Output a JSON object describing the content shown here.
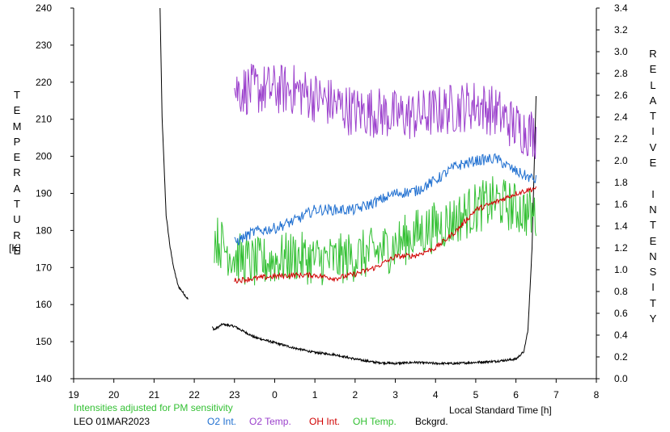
{
  "chart_data": {
    "type": "line",
    "left_axis_title": "TEMPERATURE",
    "left_axis_unit": "[K]",
    "right_axis_title": "RELATIVE INTENSITY",
    "xlabel": "Local Standard Time [h]",
    "x_tick_labels": [
      "19",
      "20",
      "21",
      "22",
      "23",
      "0",
      "1",
      "2",
      "3",
      "4",
      "5",
      "6",
      "7",
      "8"
    ],
    "x_ticks_hours": [
      19,
      20,
      21,
      22,
      23,
      24,
      25,
      26,
      27,
      28,
      29,
      30,
      31,
      32
    ],
    "xlim": [
      19,
      32
    ],
    "left_ylim": [
      140,
      240
    ],
    "left_ticks": [
      140,
      150,
      160,
      170,
      180,
      190,
      200,
      210,
      220,
      230,
      240
    ],
    "right_ylim": [
      0.0,
      3.4
    ],
    "right_ticks": [
      "0.0",
      "0.2",
      "0.4",
      "0.6",
      "0.8",
      "1.0",
      "1.2",
      "1.4",
      "1.6",
      "1.8",
      "2.0",
      "2.2",
      "2.4",
      "2.6",
      "2.8",
      "3.0",
      "3.2",
      "3.4"
    ],
    "note": "Intensities adjusted for PM sensitivity",
    "station_date": "LEO 01MAR2023",
    "series": [
      {
        "name": "O2 Int.",
        "color": "#1f6fd0",
        "axis": "right",
        "x": [
          23.0,
          23.5,
          24.0,
          24.5,
          25.0,
          25.5,
          26.0,
          26.5,
          27.0,
          27.5,
          28.0,
          28.5,
          29.0,
          29.5,
          30.0,
          30.5
        ],
        "y": [
          1.25,
          1.35,
          1.38,
          1.45,
          1.55,
          1.55,
          1.55,
          1.62,
          1.7,
          1.72,
          1.82,
          1.95,
          2.0,
          2.02,
          1.9,
          1.82
        ],
        "noise": 0.05
      },
      {
        "name": "O2 Temp.",
        "color": "#9b40cc",
        "axis": "left",
        "x": [
          23.0,
          23.5,
          24.0,
          24.5,
          25.0,
          25.5,
          26.0,
          26.5,
          27.0,
          27.5,
          28.0,
          28.5,
          29.0,
          29.5,
          30.0,
          30.5
        ],
        "y": [
          218,
          218,
          218,
          218,
          216,
          214,
          212,
          212,
          211,
          211,
          212,
          213,
          214,
          212,
          208,
          206
        ],
        "noise": 7
      },
      {
        "name": "OH Int.",
        "color": "#d00000",
        "axis": "right",
        "x": [
          23.0,
          23.5,
          24.0,
          24.5,
          25.0,
          25.5,
          26.0,
          26.5,
          27.0,
          27.5,
          28.0,
          28.5,
          29.0,
          29.5,
          30.0,
          30.5
        ],
        "y": [
          0.9,
          0.92,
          0.94,
          0.95,
          0.95,
          0.92,
          0.96,
          1.02,
          1.12,
          1.13,
          1.2,
          1.35,
          1.55,
          1.62,
          1.7,
          1.75
        ],
        "noise": 0.025
      },
      {
        "name": "OH Temp.",
        "color": "#33c033",
        "axis": "left",
        "x": [
          22.5,
          23.0,
          23.5,
          24.0,
          24.5,
          25.0,
          25.5,
          26.0,
          26.5,
          27.0,
          27.5,
          28.0,
          28.5,
          29.0,
          29.5,
          30.0,
          30.5
        ],
        "y": [
          178,
          173,
          171,
          172,
          173,
          172,
          172,
          173,
          174,
          176,
          179,
          181,
          183,
          186,
          188,
          186,
          184
        ],
        "noise": 7
      },
      {
        "name": "Bckgrd.",
        "color": "#000000",
        "axis": "right",
        "x": [
          21.15,
          21.2,
          21.3,
          21.4,
          21.5,
          21.6,
          21.7,
          21.8,
          22.5,
          22.7,
          23.0,
          23.5,
          24.0,
          24.5,
          25.0,
          25.5,
          26.0,
          26.5,
          27.0,
          27.5,
          28.0,
          28.5,
          29.0,
          29.5,
          30.0,
          30.2,
          30.3,
          30.4,
          30.5
        ],
        "y": [
          3.4,
          2.4,
          1.5,
          1.2,
          1.0,
          0.85,
          0.8,
          0.75,
          0.45,
          0.5,
          0.48,
          0.38,
          0.33,
          0.28,
          0.24,
          0.22,
          0.18,
          0.15,
          0.14,
          0.15,
          0.14,
          0.14,
          0.15,
          0.16,
          0.18,
          0.25,
          0.45,
          1.2,
          2.6
        ],
        "noise": 0.01
      }
    ]
  }
}
